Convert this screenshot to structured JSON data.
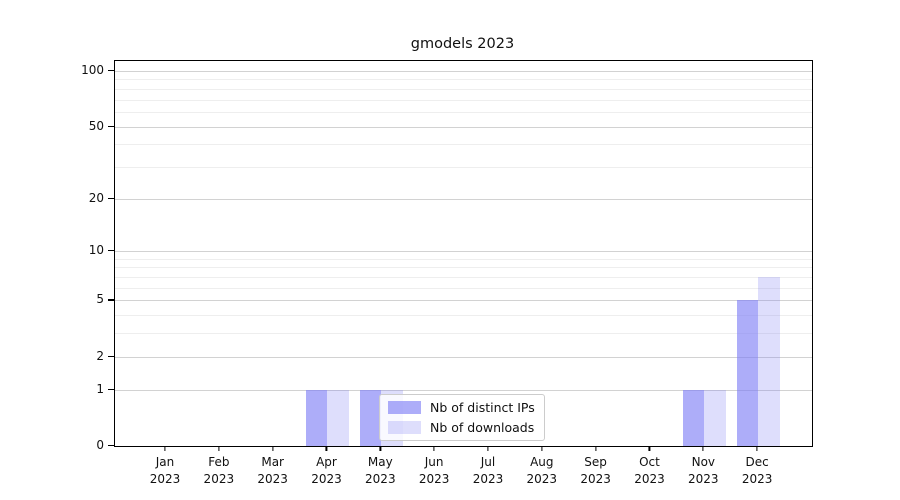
{
  "chart_data": {
    "type": "bar",
    "title": "gmodels 2023",
    "categories": [
      "Jan",
      "Feb",
      "Mar",
      "Apr",
      "May",
      "Jun",
      "Jul",
      "Aug",
      "Sep",
      "Oct",
      "Nov",
      "Dec"
    ],
    "category_year": "2023",
    "series": [
      {
        "name": "Nb of distinct IPs",
        "color": "rgba(122,122,245,0.62)",
        "color_hex_on_white": "#a9a9f7",
        "values": [
          0,
          0,
          0,
          1,
          1,
          0,
          0,
          0,
          0,
          0,
          1,
          5
        ]
      },
      {
        "name": "Nb of downloads",
        "color": "rgba(122,122,245,0.25)",
        "color_hex_on_white": "#dbdbfa",
        "values": [
          0,
          0,
          0,
          1,
          1,
          0,
          0,
          0,
          0,
          0,
          1,
          7
        ]
      }
    ],
    "xlabel": "",
    "ylabel": "",
    "yscale": "log1p",
    "ylim": [
      0,
      113
    ],
    "yticks": [
      0,
      1,
      2,
      5,
      10,
      20,
      50,
      100
    ],
    "minor_gridline_values": [
      3,
      4,
      6,
      7,
      8,
      9,
      30,
      40,
      60,
      70,
      80,
      90
    ],
    "grid": "horizontal",
    "major_grid_color": "#d2d2d2",
    "minor_grid_color": "#eeeeee",
    "legend_position": "inside-bottom-center",
    "background_color": "#ffffff",
    "spine_color": "#000000"
  }
}
